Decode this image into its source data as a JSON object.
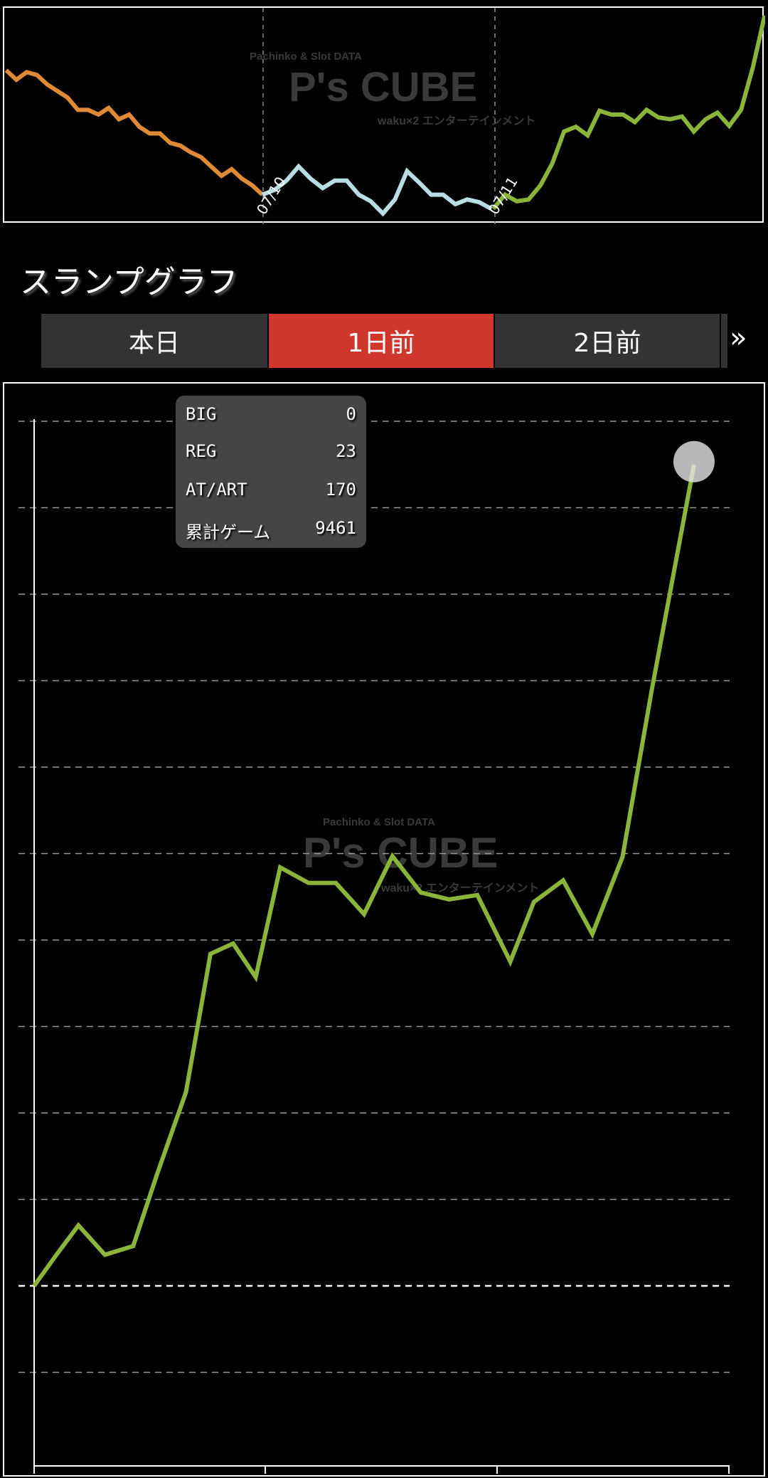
{
  "watermark": {
    "line1": "Pachinko & Slot DATA",
    "brand": "P's CUBE",
    "line2": "waku×2 エンターテインメント"
  },
  "top_chart": {
    "date_labels": [
      "07/10",
      "07/11"
    ],
    "segments": [
      {
        "color": "#e08a38",
        "values": [
          165,
          155,
          163,
          160,
          150,
          143,
          136,
          123,
          123,
          118,
          125,
          113,
          118,
          105,
          98,
          98,
          88,
          85,
          78,
          73,
          63,
          53,
          60,
          50,
          43,
          33
        ]
      },
      {
        "color": "#b8dde3",
        "values": [
          33,
          38,
          48,
          63,
          50,
          40,
          48,
          48,
          33,
          26,
          13,
          28,
          58,
          46,
          33,
          33,
          23,
          28,
          25,
          18
        ]
      },
      {
        "color": "#8ab53a",
        "values": [
          18,
          33,
          26,
          28,
          43,
          66,
          100,
          105,
          96,
          122,
          118,
          118,
          110,
          123,
          115,
          113,
          116,
          100,
          113,
          120,
          106,
          123,
          168,
          223
        ]
      }
    ]
  },
  "title": "スランプグラフ",
  "tabs": [
    {
      "label": "本日",
      "active": false
    },
    {
      "label": "1日前",
      "active": true
    },
    {
      "label": "2日前",
      "active": false
    }
  ],
  "more_icon": "double-chevron-right",
  "tooltip": {
    "rows": [
      {
        "label": "BIG",
        "value": "0"
      },
      {
        "label": "REG",
        "value": "23"
      },
      {
        "label": "AT/ART",
        "value": "170"
      },
      {
        "label": "累計ゲーム",
        "value": "9461"
      }
    ]
  },
  "chart_data": {
    "type": "line",
    "color": "#8ab53a",
    "grid": true,
    "xlim": [
      0,
      9961
    ],
    "ylim": [
      -2,
      10
    ],
    "y_unit_note": "",
    "x": [
      0,
      311,
      635,
      1014,
      1420,
      1758,
      2177,
      2528,
      2853,
      3177,
      3528,
      3934,
      4326,
      4731,
      5137,
      5543,
      5948,
      6354,
      6827,
      7165,
      7584,
      8003,
      8436,
      8855,
      9461
    ],
    "y": [
      0,
      0.35,
      0.7,
      0.36,
      0.46,
      1.28,
      2.24,
      3.84,
      3.96,
      3.57,
      4.84,
      4.66,
      4.66,
      4.3,
      4.97,
      4.55,
      4.47,
      4.52,
      3.75,
      4.44,
      4.69,
      4.07,
      4.96,
      6.89,
      9.5
    ],
    "highlight_index": 24
  }
}
